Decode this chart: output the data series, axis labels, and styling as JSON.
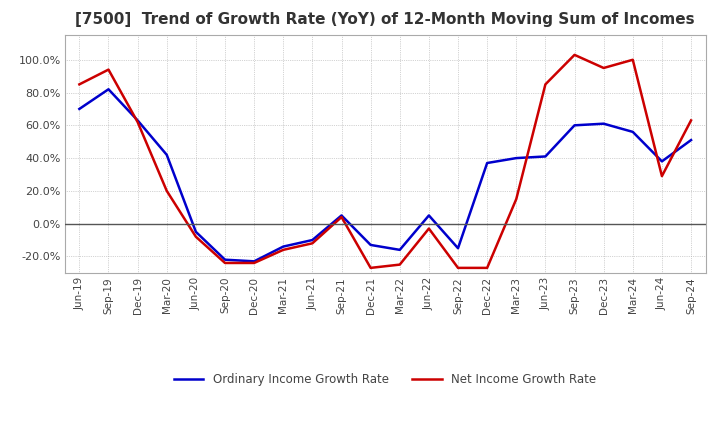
{
  "title": "[7500]  Trend of Growth Rate (YoY) of 12-Month Moving Sum of Incomes",
  "title_fontsize": 11,
  "background_color": "#ffffff",
  "grid_color": "#aaaaaa",
  "ylim": [
    -30,
    115
  ],
  "yticks": [
    -20.0,
    0.0,
    20.0,
    40.0,
    60.0,
    80.0,
    100.0
  ],
  "x_labels": [
    "Jun-19",
    "Sep-19",
    "Dec-19",
    "Mar-20",
    "Jun-20",
    "Sep-20",
    "Dec-20",
    "Mar-21",
    "Jun-21",
    "Sep-21",
    "Dec-21",
    "Mar-22",
    "Jun-22",
    "Sep-22",
    "Dec-22",
    "Mar-23",
    "Jun-23",
    "Sep-23",
    "Dec-23",
    "Mar-24",
    "Jun-24",
    "Sep-24"
  ],
  "ordinary_income": [
    70.0,
    82.0,
    63.0,
    42.0,
    -5.0,
    -22.0,
    -23.0,
    -14.0,
    -10.0,
    5.0,
    -13.0,
    -16.0,
    5.0,
    -15.0,
    37.0,
    40.0,
    41.0,
    60.0,
    61.0,
    56.0,
    38.0,
    51.0
  ],
  "net_income": [
    85.0,
    94.0,
    62.0,
    20.0,
    -8.0,
    -24.0,
    -24.0,
    -16.0,
    -12.0,
    4.0,
    -27.0,
    -25.0,
    -3.0,
    -27.0,
    -27.0,
    15.0,
    85.0,
    103.0,
    95.0,
    100.0,
    29.0,
    63.0
  ],
  "ordinary_color": "#0000cc",
  "net_color": "#cc0000",
  "line_width": 1.8,
  "legend_labels": [
    "Ordinary Income Growth Rate",
    "Net Income Growth Rate"
  ]
}
